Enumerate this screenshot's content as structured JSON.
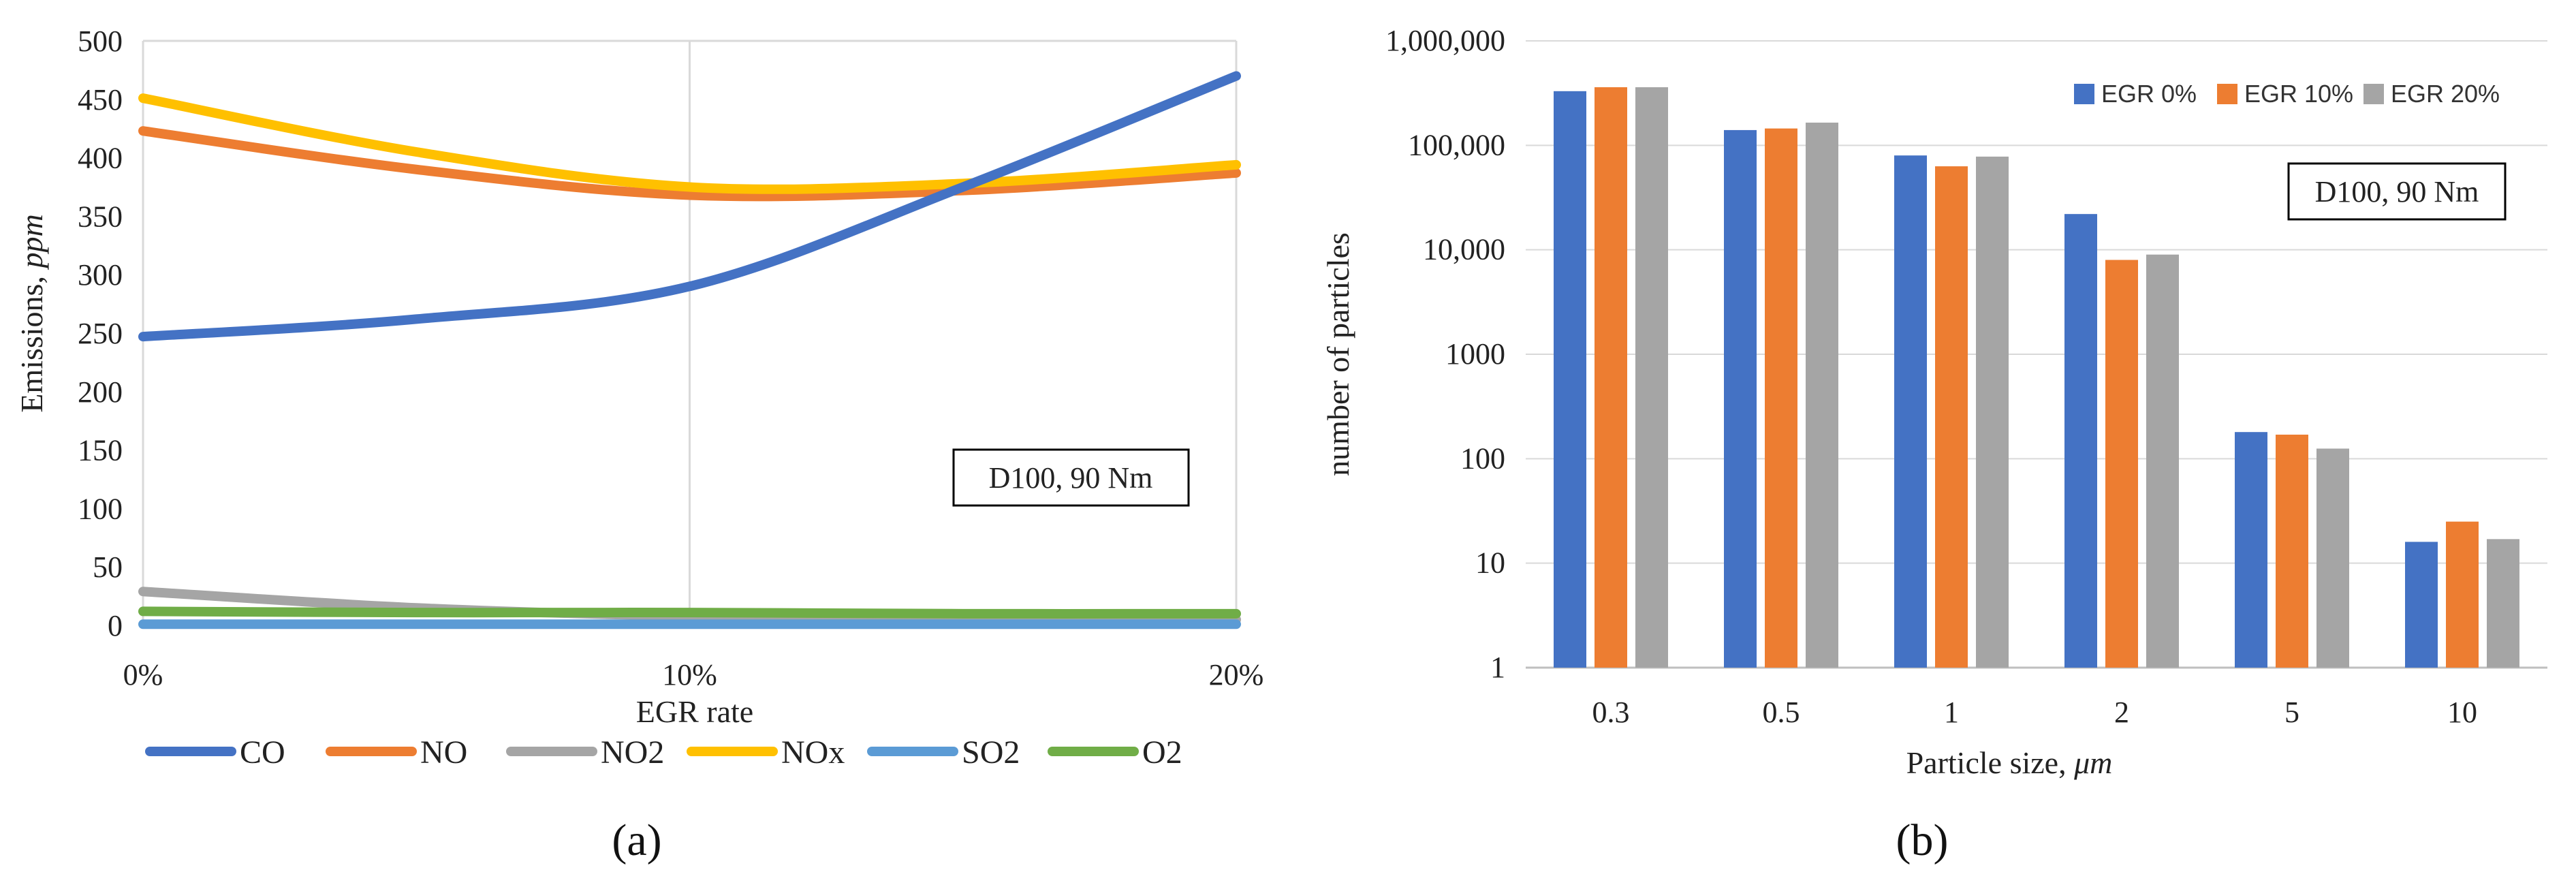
{
  "chart_data": [
    {
      "type": "line",
      "panel_label": "(a)",
      "xlabel": "EGR rate",
      "ylabel": "Emissions, ppm",
      "ylabel_main": "Emissions,",
      "ylabel_unit": "ppm",
      "x": [
        0,
        5,
        10,
        15,
        20
      ],
      "x_tick_labels": [
        "0%",
        "10%",
        "20%"
      ],
      "x_tick_values": [
        0,
        10,
        20
      ],
      "ylim": [
        0,
        500
      ],
      "y_ticks": [
        0,
        50,
        100,
        150,
        200,
        250,
        300,
        350,
        400,
        450,
        500
      ],
      "grid": "vertical",
      "annotation": "D100, 90 Nm",
      "series": [
        {
          "name": "CO",
          "color": "#4472C4",
          "values": [
            247,
            262,
            290,
            375,
            470
          ]
        },
        {
          "name": "NO",
          "color": "#ED7D31",
          "values": [
            423,
            390,
            368,
            372,
            387
          ]
        },
        {
          "name": "NO2",
          "color": "#A5A5A5",
          "values": [
            29,
            15,
            8,
            6,
            5
          ]
        },
        {
          "name": "NOx",
          "color": "#FFC000",
          "values": [
            451,
            405,
            375,
            378,
            394
          ]
        },
        {
          "name": "SO2",
          "color": "#5B9BD5",
          "values": [
            1,
            1,
            1,
            1,
            1
          ]
        },
        {
          "name": "O2",
          "color": "#70AD47",
          "values": [
            12,
            11,
            11,
            10,
            10
          ]
        }
      ]
    },
    {
      "type": "bar",
      "panel_label": "(b)",
      "xlabel": "Particle size, μm",
      "xlabel_main": "Particle size,",
      "xlabel_unit": "μm",
      "ylabel": "number of particles",
      "yscale": "log",
      "ylim": [
        1,
        1000000
      ],
      "y_tick_labels": [
        "1",
        "10",
        "100",
        "1000",
        "10,000",
        "100,000",
        "1,000,000"
      ],
      "categories": [
        "0.3",
        "0.5",
        "1",
        "2",
        "5",
        "10"
      ],
      "annotation": "D100, 90 Nm",
      "series": [
        {
          "name": "EGR 0%",
          "color": "#4472C4",
          "values": [
            330000,
            140000,
            80000,
            22000,
            180,
            16
          ]
        },
        {
          "name": "EGR 10%",
          "color": "#ED7D31",
          "values": [
            360000,
            145000,
            63000,
            8000,
            170,
            25
          ]
        },
        {
          "name": "EGR 20%",
          "color": "#A5A5A5",
          "values": [
            360000,
            165000,
            78000,
            9000,
            125,
            17
          ]
        }
      ]
    }
  ]
}
